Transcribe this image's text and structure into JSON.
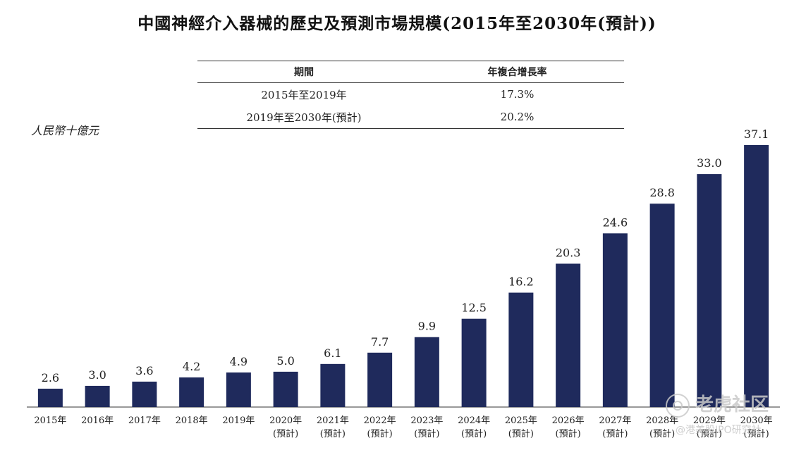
{
  "title": "中國神經介入器械的歷史及預測市場規模(2015年至2030年(預計))",
  "unit_label": "人民幣十億元",
  "cagr_table": {
    "headers": [
      "期間",
      "年複合增長率"
    ],
    "rows": [
      [
        "2015年至2019年",
        "17.3%"
      ],
      [
        "2019年至2030年(預計)",
        "20.2%"
      ]
    ]
  },
  "watermark": {
    "main": "老虎社区",
    "sub": "@港美股IPO研究社"
  },
  "chart_data": {
    "type": "bar",
    "title": "中國神經介入器械的歷史及預測市場規模(2015年至2030年(預計))",
    "ylabel": "人民幣十億元",
    "xlabel": "",
    "categories": [
      "2015年",
      "2016年",
      "2017年",
      "2018年",
      "2019年",
      "2020年",
      "2021年",
      "2022年",
      "2023年",
      "2024年",
      "2025年",
      "2026年",
      "2027年",
      "2028年",
      "2029年",
      "2030年"
    ],
    "category_notes": [
      "",
      "",
      "",
      "",
      "",
      "(預計)",
      "(預計)",
      "(預計)",
      "(預計)",
      "(預計)",
      "(預計)",
      "(預計)",
      "(預計)",
      "(預計)",
      "(預計)",
      "(預計)"
    ],
    "values": [
      2.6,
      3.0,
      3.6,
      4.2,
      4.9,
      5.0,
      6.1,
      7.7,
      9.9,
      12.5,
      16.2,
      20.3,
      24.6,
      28.8,
      33.0,
      37.1
    ],
    "value_labels": [
      "2.6",
      "3.0",
      "3.6",
      "4.2",
      "4.9",
      "5.0",
      "6.1",
      "7.7",
      "9.9",
      "12.5",
      "16.2",
      "20.3",
      "24.6",
      "28.8",
      "33.0",
      "37.1"
    ],
    "ylim": [
      0,
      37.1
    ],
    "bar_color": "#1f2a5c",
    "grid": false,
    "legend": "none"
  }
}
